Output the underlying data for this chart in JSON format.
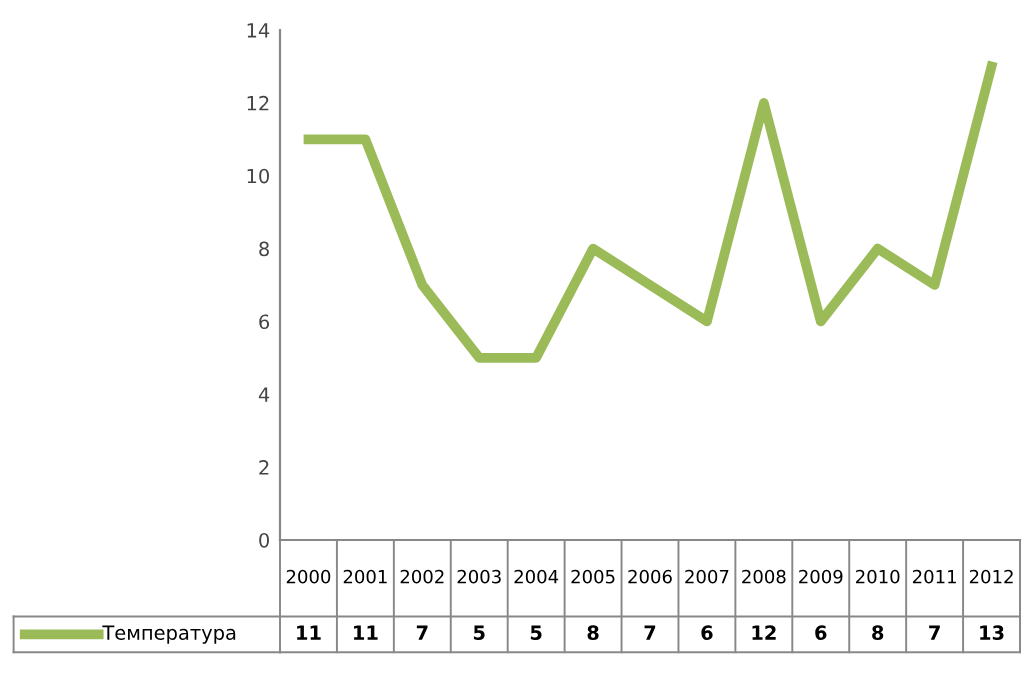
{
  "chart_data": {
    "type": "line",
    "categories": [
      "2000",
      "2001",
      "2002",
      "2003",
      "2004",
      "2005",
      "2006",
      "2007",
      "2008",
      "2009",
      "2010",
      "2011",
      "2012"
    ],
    "series": [
      {
        "name": "Температура",
        "color": "#9bbb59",
        "values": [
          11,
          11,
          7,
          5,
          5,
          8,
          7,
          6,
          12,
          6,
          8,
          7,
          13
        ]
      }
    ],
    "ylim": [
      0,
      14
    ],
    "yticks": [
      0,
      2,
      4,
      6,
      8,
      10,
      12,
      14
    ],
    "data_labels": true,
    "grid": false,
    "marker": "none",
    "line_style": "solid",
    "legend": "bottom"
  }
}
